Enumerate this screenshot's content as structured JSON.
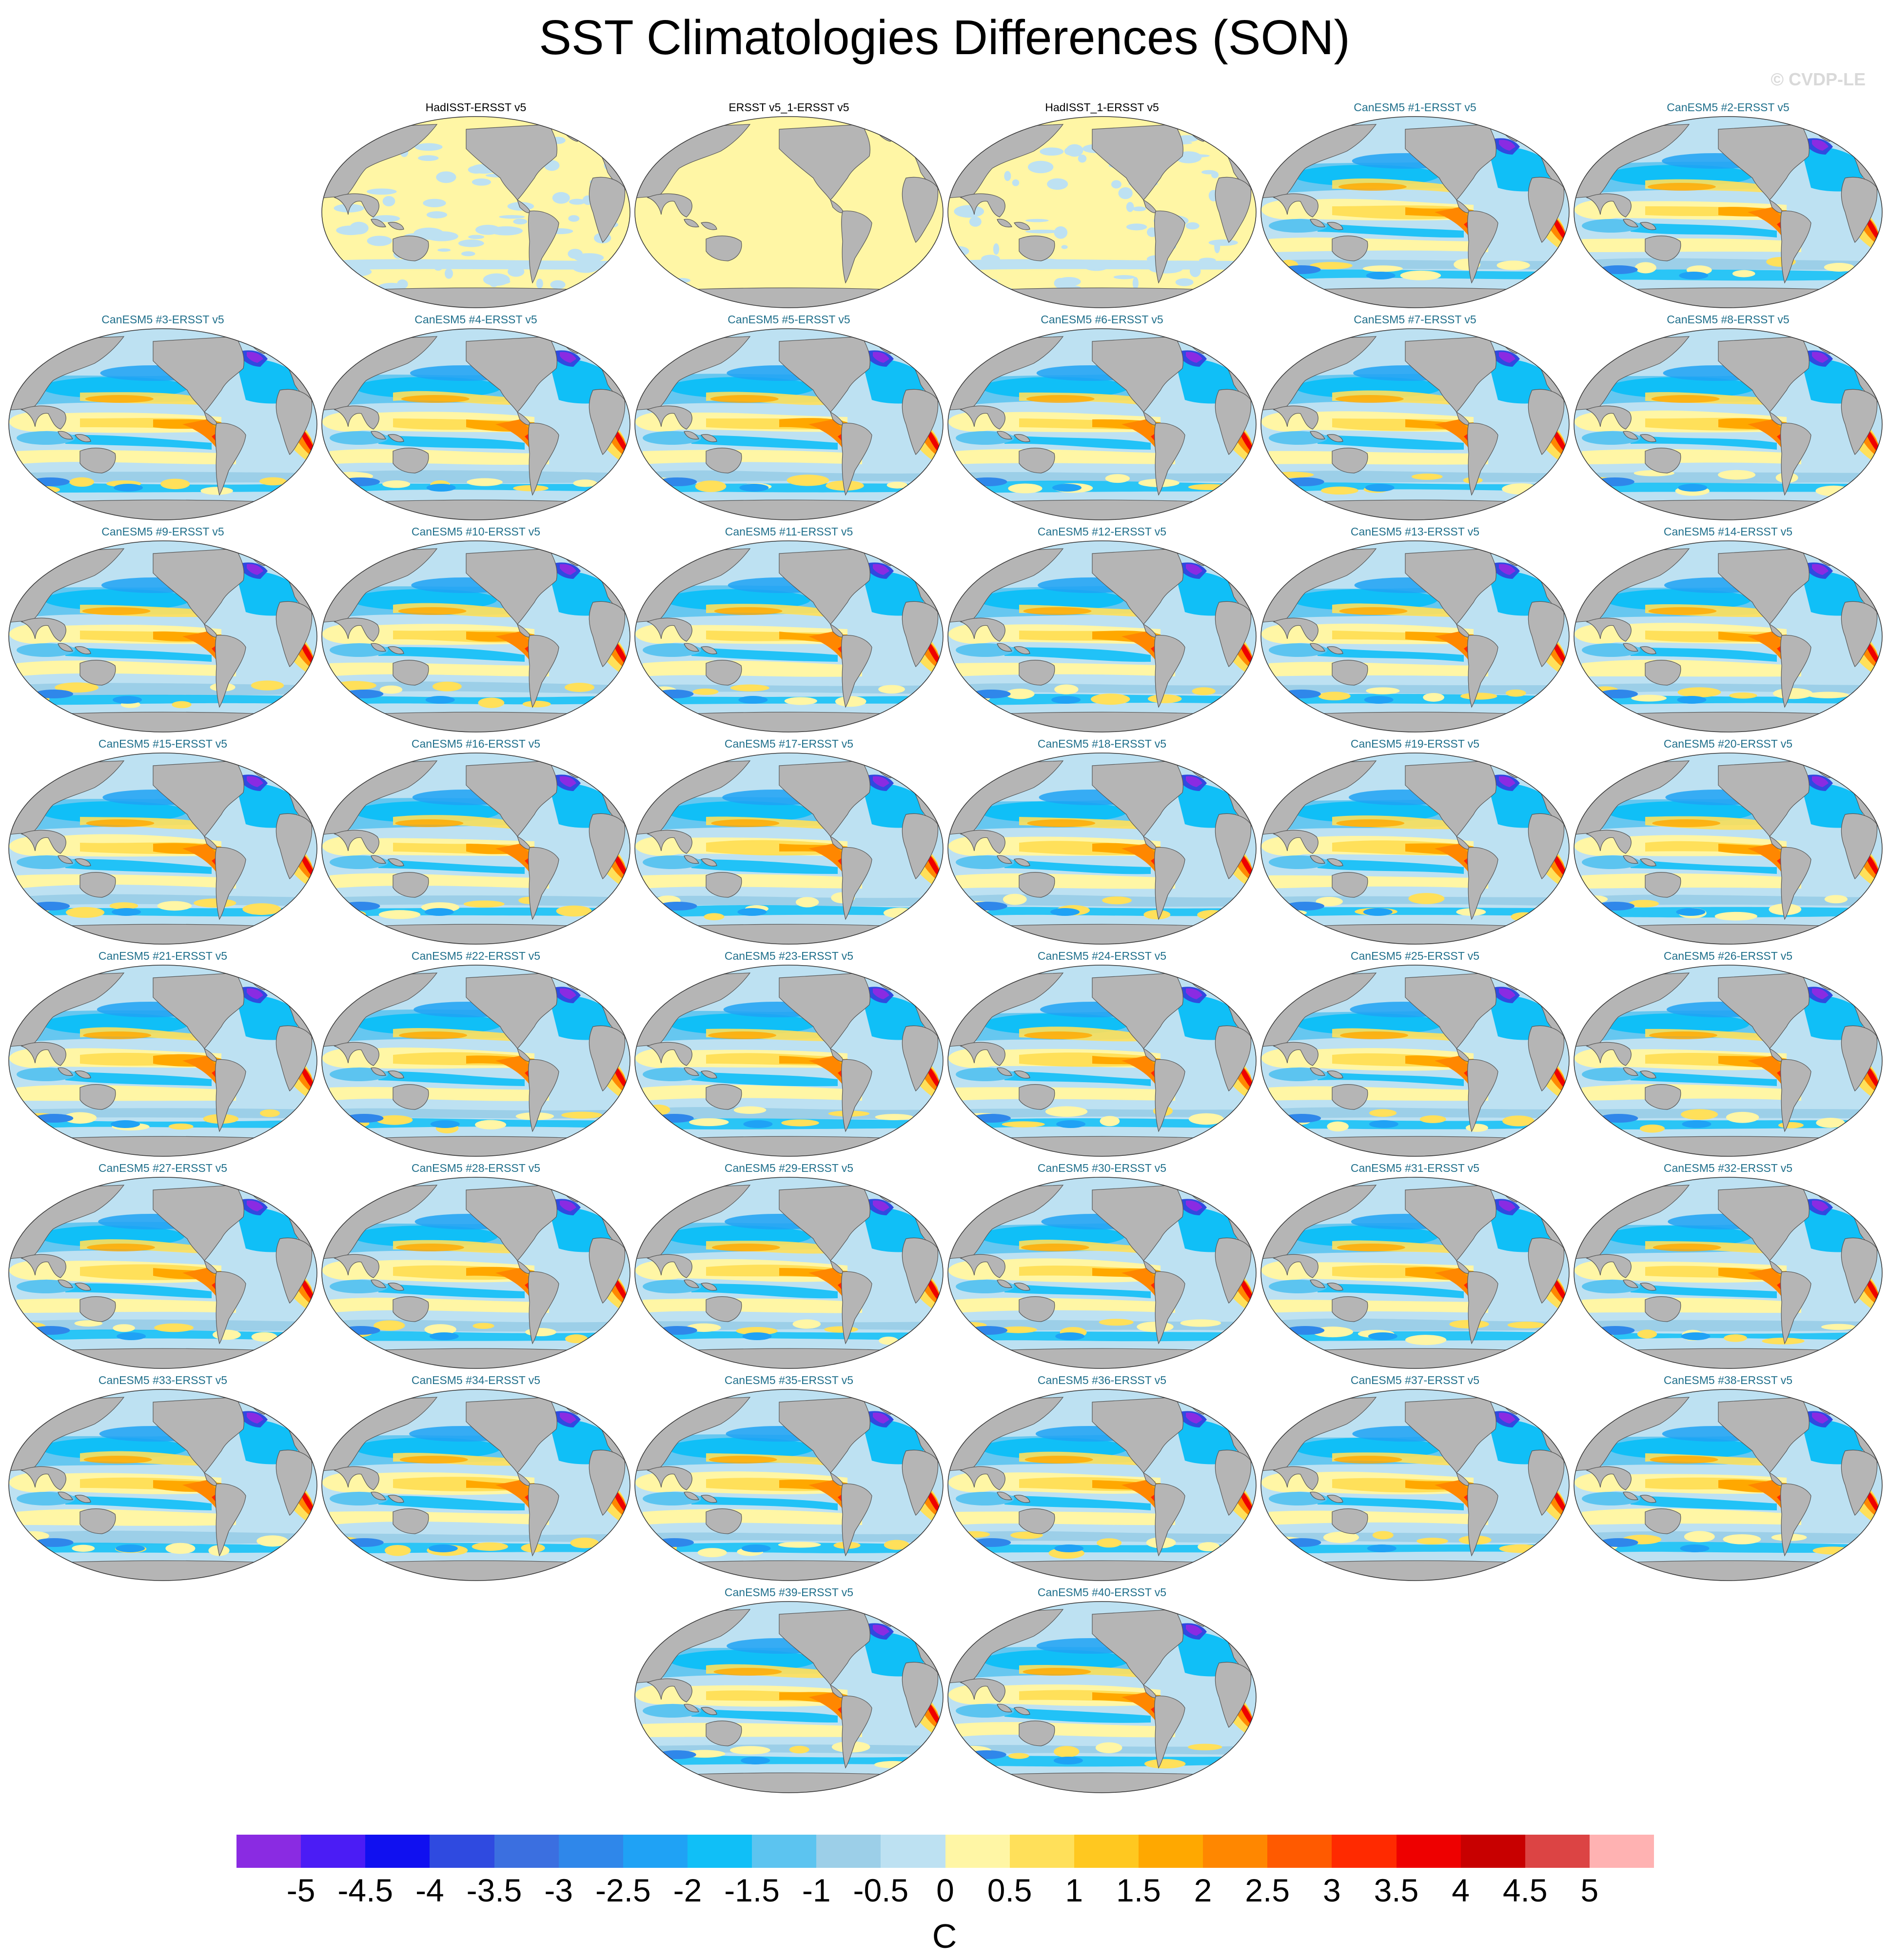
{
  "title": "SST Climatologies Differences (SON)",
  "watermark": "© CVDP-LE",
  "panel_title_colors": {
    "observations": "#000000",
    "model": "#1f6f8b"
  },
  "map_colors": {
    "land": "#b5b5b5",
    "coast": "#555555",
    "ocean_background": "#bde1f2"
  },
  "panels": [
    {
      "title": "HadISST-ERSST v5",
      "kind": "observations",
      "variant": "obs-mixed"
    },
    {
      "title": "ERSST v5_1-ERSST v5",
      "kind": "observations",
      "variant": "obs-flat"
    },
    {
      "title": "HadISST_1-ERSST v5",
      "kind": "observations",
      "variant": "obs-mixed"
    },
    {
      "title": "CanESM5 #1-ERSST v5",
      "kind": "model"
    },
    {
      "title": "CanESM5 #2-ERSST v5",
      "kind": "model"
    },
    {
      "title": "CanESM5 #3-ERSST v5",
      "kind": "model"
    },
    {
      "title": "CanESM5 #4-ERSST v5",
      "kind": "model"
    },
    {
      "title": "CanESM5 #5-ERSST v5",
      "kind": "model"
    },
    {
      "title": "CanESM5 #6-ERSST v5",
      "kind": "model"
    },
    {
      "title": "CanESM5 #7-ERSST v5",
      "kind": "model"
    },
    {
      "title": "CanESM5 #8-ERSST v5",
      "kind": "model"
    },
    {
      "title": "CanESM5 #9-ERSST v5",
      "kind": "model"
    },
    {
      "title": "CanESM5 #10-ERSST v5",
      "kind": "model"
    },
    {
      "title": "CanESM5 #11-ERSST v5",
      "kind": "model"
    },
    {
      "title": "CanESM5 #12-ERSST v5",
      "kind": "model"
    },
    {
      "title": "CanESM5 #13-ERSST v5",
      "kind": "model"
    },
    {
      "title": "CanESM5 #14-ERSST v5",
      "kind": "model"
    },
    {
      "title": "CanESM5 #15-ERSST v5",
      "kind": "model"
    },
    {
      "title": "CanESM5 #16-ERSST v5",
      "kind": "model"
    },
    {
      "title": "CanESM5 #17-ERSST v5",
      "kind": "model"
    },
    {
      "title": "CanESM5 #18-ERSST v5",
      "kind": "model"
    },
    {
      "title": "CanESM5 #19-ERSST v5",
      "kind": "model"
    },
    {
      "title": "CanESM5 #20-ERSST v5",
      "kind": "model"
    },
    {
      "title": "CanESM5 #21-ERSST v5",
      "kind": "model"
    },
    {
      "title": "CanESM5 #22-ERSST v5",
      "kind": "model"
    },
    {
      "title": "CanESM5 #23-ERSST v5",
      "kind": "model"
    },
    {
      "title": "CanESM5 #24-ERSST v5",
      "kind": "model"
    },
    {
      "title": "CanESM5 #25-ERSST v5",
      "kind": "model"
    },
    {
      "title": "CanESM5 #26-ERSST v5",
      "kind": "model"
    },
    {
      "title": "CanESM5 #27-ERSST v5",
      "kind": "model"
    },
    {
      "title": "CanESM5 #28-ERSST v5",
      "kind": "model"
    },
    {
      "title": "CanESM5 #29-ERSST v5",
      "kind": "model"
    },
    {
      "title": "CanESM5 #30-ERSST v5",
      "kind": "model"
    },
    {
      "title": "CanESM5 #31-ERSST v5",
      "kind": "model"
    },
    {
      "title": "CanESM5 #32-ERSST v5",
      "kind": "model"
    },
    {
      "title": "CanESM5 #33-ERSST v5",
      "kind": "model"
    },
    {
      "title": "CanESM5 #34-ERSST v5",
      "kind": "model"
    },
    {
      "title": "CanESM5 #35-ERSST v5",
      "kind": "model"
    },
    {
      "title": "CanESM5 #36-ERSST v5",
      "kind": "model"
    },
    {
      "title": "CanESM5 #37-ERSST v5",
      "kind": "model"
    },
    {
      "title": "CanESM5 #38-ERSST v5",
      "kind": "model"
    },
    {
      "title": "CanESM5 #39-ERSST v5",
      "kind": "model"
    },
    {
      "title": "CanESM5 #40-ERSST v5",
      "kind": "model"
    }
  ],
  "colorbar": {
    "units": "C",
    "labels": [
      "-5",
      "-4.5",
      "-4",
      "-3.5",
      "-3",
      "-2.5",
      "-2",
      "-1.5",
      "-1",
      "-0.5",
      "0",
      "0.5",
      "1",
      "1.5",
      "2",
      "2.5",
      "3",
      "3.5",
      "4",
      "4.5",
      "5"
    ],
    "colors": [
      "#8a2be2",
      "#4b1cf5",
      "#1010f0",
      "#2f4ae0",
      "#3b6fe0",
      "#2f87ea",
      "#1fa2f5",
      "#10bff7",
      "#5cc4f0",
      "#9ccfe8",
      "#bde1f2",
      "#fff6a5",
      "#ffe05a",
      "#ffc820",
      "#ffa800",
      "#ff8700",
      "#ff5a00",
      "#ff2a00",
      "#ee0000",
      "#c80000",
      "#dc4444",
      "#ffb2b2"
    ]
  }
}
